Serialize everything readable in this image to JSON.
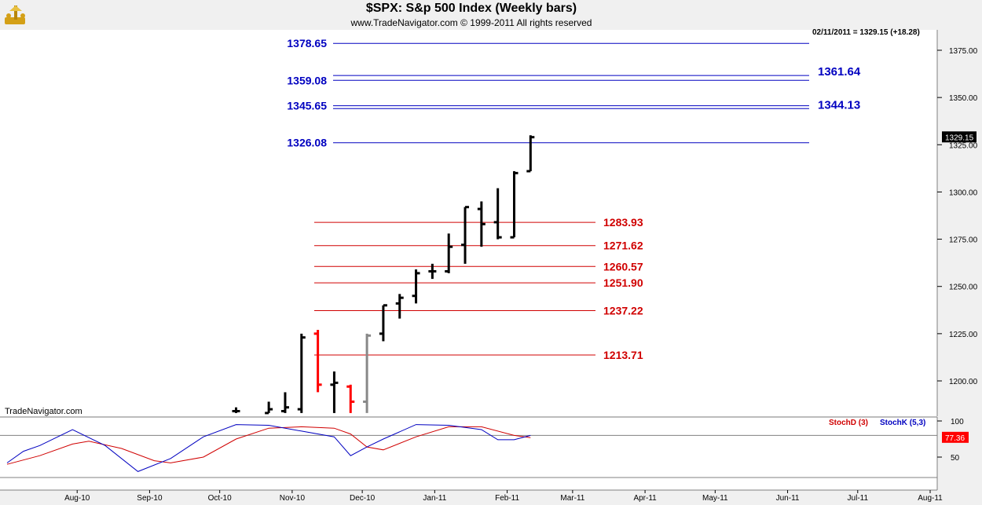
{
  "header": {
    "title": "$SPX:  S&p 500 Index  (Weekly bars)",
    "subtitle": "www.TradeNavigator.com © 1999-2011 All rights reserved",
    "status_line": "02/11/2011 = 1329.15 (+18.28)",
    "watermark": "TradeNavigator.com"
  },
  "colors": {
    "background": "#ffffff",
    "frame": "#f0f0f0",
    "fib_up": "#0000c0",
    "fib_down": "#d00000",
    "bar_up": "#000000",
    "bar_down": "#ff0000",
    "bar_gray": "#888888",
    "stoch_d": "#d00000",
    "stoch_k": "#0000c0"
  },
  "chart_data": [
    {
      "type": "ohlc",
      "ylim": [
        1183,
        1386
      ],
      "y_ticks": [
        "1375.00",
        "1350.00",
        "1325.00",
        "1300.00",
        "1275.00",
        "1250.00",
        "1225.00",
        "1200.00"
      ],
      "x_labels": [
        "Aug-10",
        "Sep-10",
        "Oct-10",
        "Nov-10",
        "Dec-10",
        "Jan-11",
        "Feb-11",
        "Mar-11",
        "Apr-11",
        "May-11",
        "Jun-11",
        "Jul-11",
        "Aug-11"
      ],
      "last_price_label": "1329.15",
      "bars": [
        {
          "date": "2010-10-08",
          "open": 1184,
          "high": 1186,
          "low": 1183,
          "close": 1184,
          "color": "black"
        },
        {
          "date": "2010-10-22",
          "open": 1183,
          "high": 1189,
          "low": 1183,
          "close": 1185,
          "color": "black"
        },
        {
          "date": "2010-10-29",
          "open": 1184,
          "high": 1194,
          "low": 1183,
          "close": 1186,
          "color": "black"
        },
        {
          "date": "2010-11-05",
          "open": 1185,
          "high": 1225,
          "low": 1183,
          "close": 1223,
          "color": "black"
        },
        {
          "date": "2010-11-12",
          "open": 1225,
          "high": 1227,
          "low": 1194,
          "close": 1198,
          "color": "red"
        },
        {
          "date": "2010-11-19",
          "open": 1198,
          "high": 1205,
          "low": 1183,
          "close": 1199,
          "color": "black"
        },
        {
          "date": "2010-11-26",
          "open": 1197,
          "high": 1198,
          "low": 1183,
          "close": 1189,
          "color": "red"
        },
        {
          "date": "2010-12-03",
          "open": 1189,
          "high": 1225,
          "low": 1183,
          "close": 1224,
          "color": "gray"
        },
        {
          "date": "2010-12-10",
          "open": 1225,
          "high": 1240,
          "low": 1221,
          "close": 1240,
          "color": "black"
        },
        {
          "date": "2010-12-17",
          "open": 1241,
          "high": 1246,
          "low": 1233,
          "close": 1244,
          "color": "black"
        },
        {
          "date": "2010-12-24",
          "open": 1245,
          "high": 1259,
          "low": 1241,
          "close": 1257,
          "color": "black"
        },
        {
          "date": "2010-12-31",
          "open": 1258,
          "high": 1262,
          "low": 1254,
          "close": 1258,
          "color": "black"
        },
        {
          "date": "2011-01-07",
          "open": 1258,
          "high": 1278,
          "low": 1257,
          "close": 1271,
          "color": "black"
        },
        {
          "date": "2011-01-14",
          "open": 1272,
          "high": 1292,
          "low": 1262,
          "close": 1292,
          "color": "black"
        },
        {
          "date": "2011-01-21",
          "open": 1291,
          "high": 1295,
          "low": 1271,
          "close": 1283,
          "color": "black"
        },
        {
          "date": "2011-01-28",
          "open": 1284,
          "high": 1302,
          "low": 1275,
          "close": 1276,
          "color": "black"
        },
        {
          "date": "2011-02-04",
          "open": 1276,
          "high": 1311,
          "low": 1276,
          "close": 1310,
          "color": "black"
        },
        {
          "date": "2011-02-11",
          "open": 1311,
          "high": 1330,
          "low": 1311,
          "close": 1329,
          "color": "black"
        }
      ],
      "fib_up": [
        1378.65,
        1361.64,
        1359.08,
        1345.65,
        1344.13,
        1326.08
      ],
      "fib_down": [
        1283.93,
        1271.62,
        1260.57,
        1251.9,
        1237.22,
        1213.71
      ],
      "fib_up_labels_left": [
        "1378.65",
        "1359.08",
        "1345.65",
        "1326.08"
      ],
      "fib_up_labels_right": [
        "1361.64",
        "1344.13"
      ],
      "fib_down_labels": [
        "1283.93",
        "1271.62",
        "1260.57",
        "1251.90",
        "1237.22",
        "1213.71"
      ]
    },
    {
      "type": "line",
      "ylim": [
        0,
        110
      ],
      "y_ticks": [
        "100",
        "50"
      ],
      "reference_line": 80,
      "series": [
        {
          "name": "StochD (3)",
          "color": "#d00000",
          "dates": [
            "2010-07-02",
            "2010-07-16",
            "2010-07-30",
            "2010-08-06",
            "2010-08-20",
            "2010-09-03",
            "2010-09-10",
            "2010-09-24",
            "2010-10-08",
            "2010-10-22",
            "2010-11-05",
            "2010-11-19",
            "2010-11-26",
            "2010-12-03",
            "2010-12-10",
            "2010-12-24",
            "2011-01-07",
            "2011-01-21",
            "2011-02-04",
            "2011-02-11"
          ],
          "values": [
            40,
            52,
            68,
            72,
            62,
            45,
            42,
            50,
            75,
            90,
            92,
            90,
            82,
            64,
            60,
            78,
            92,
            92,
            80,
            77
          ]
        },
        {
          "name": "StochK (5,3)",
          "color": "#0000c0",
          "dates": [
            "2010-07-02",
            "2010-07-09",
            "2010-07-16",
            "2010-07-30",
            "2010-08-13",
            "2010-08-27",
            "2010-09-10",
            "2010-09-24",
            "2010-10-08",
            "2010-10-22",
            "2010-11-05",
            "2010-11-19",
            "2010-11-26",
            "2010-12-03",
            "2010-12-10",
            "2010-12-24",
            "2011-01-07",
            "2011-01-21",
            "2011-01-28",
            "2011-02-04",
            "2011-02-11"
          ],
          "values": [
            42,
            58,
            66,
            88,
            66,
            30,
            48,
            78,
            95,
            94,
            86,
            78,
            52,
            64,
            75,
            95,
            94,
            88,
            74,
            74,
            80
          ]
        }
      ],
      "last_value_label": "77.36"
    }
  ]
}
